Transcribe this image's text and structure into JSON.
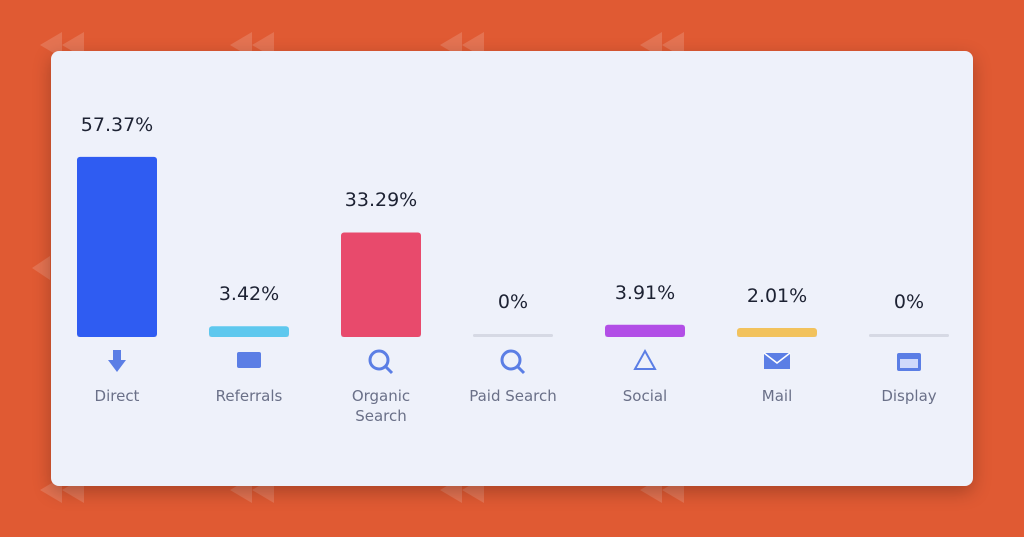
{
  "chart_data": {
    "type": "bar",
    "categories": [
      "Direct",
      "Referrals",
      "Organic Search",
      "Paid Search",
      "Social",
      "Mail",
      "Display"
    ],
    "values": [
      57.37,
      3.42,
      33.29,
      0,
      3.91,
      2.01,
      0
    ],
    "value_labels": [
      "57.37%",
      "3.42%",
      "33.29%",
      "0%",
      "3.91%",
      "2.01%",
      "0%"
    ],
    "colors": [
      "#2f5cf2",
      "#5ec8ee",
      "#e84a6c",
      "#d6d9e4",
      "#b24ee6",
      "#f2c25c",
      "#d6d9e4"
    ]
  }
}
